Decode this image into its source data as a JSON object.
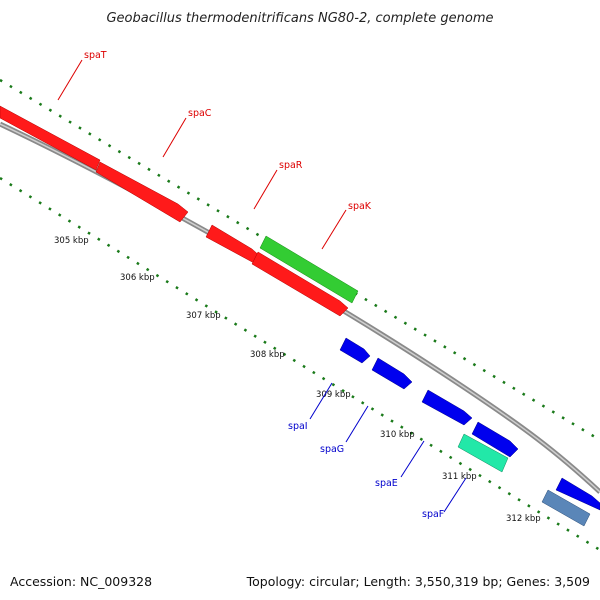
{
  "title": "Geobacillus thermodenitrificans NG80-2, complete genome",
  "footer": {
    "accession": "Accession: NC_009328",
    "topology": "Topology: circular; Length: 3,550,319 bp; Genes: 3,509"
  },
  "colors": {
    "backbone": "#8a8a8a",
    "tick": "#1a7a1a",
    "red": "#ff1a1a",
    "green": "#33cc33",
    "blue": "#0000ee",
    "cyan": "#22e8a8",
    "steel": "#5a86b8",
    "label_red": "#dd0000",
    "label_blue": "#0000cc"
  },
  "kbp_labels": [
    "305 kbp",
    "306 kbp",
    "307 kbp",
    "308 kbp",
    "309 kbp",
    "310 kbp",
    "311 kbp",
    "312 kbp"
  ],
  "gene_labels": [
    {
      "name": "spaT",
      "strand": "forward"
    },
    {
      "name": "spaC",
      "strand": "forward"
    },
    {
      "name": "spaR",
      "strand": "forward"
    },
    {
      "name": "spaK",
      "strand": "forward"
    },
    {
      "name": "spaI",
      "strand": "reverse"
    },
    {
      "name": "spaG",
      "strand": "reverse"
    },
    {
      "name": "spaE",
      "strand": "reverse"
    },
    {
      "name": "spaF",
      "strand": "reverse"
    }
  ]
}
